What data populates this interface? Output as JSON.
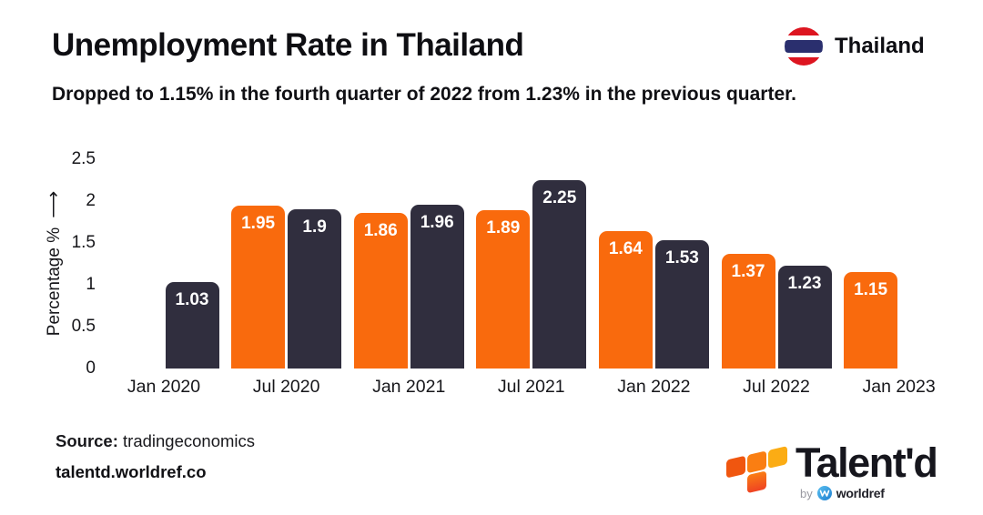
{
  "header": {
    "country_label": "Thailand",
    "flag_icon": "thailand-flag-icon"
  },
  "chart_data": {
    "type": "bar",
    "title": "Unemployment Rate in Thailand",
    "subtitle": "Dropped to 1.15% in the fourth quarter of 2022 from 1.23% in the previous quarter.",
    "ylabel": "Percentage %",
    "ylim": [
      0,
      2.5
    ],
    "yticks": [
      0,
      0.5,
      1,
      1.5,
      2,
      2.5
    ],
    "grid": false,
    "legend": false,
    "x_tick_labels": [
      "Jan 2020",
      "Jul 2020",
      "Jan 2021",
      "Jul 2021",
      "Jan 2022",
      "Jul 2022",
      "Jan 2023"
    ],
    "bar_colors": {
      "orange": "#F96A0D",
      "navy": "#302E3E"
    },
    "bars": [
      {
        "quarter": "Q1 2020",
        "value": 1.03,
        "label": "1.03",
        "color": "navy",
        "tick_index": 0,
        "side": "right"
      },
      {
        "quarter": "Q2 2020",
        "value": 1.95,
        "label": "1.95",
        "color": "orange",
        "tick_index": 1,
        "side": "left"
      },
      {
        "quarter": "Q3 2020",
        "value": 1.9,
        "label": "1.9",
        "color": "navy",
        "tick_index": 1,
        "side": "right"
      },
      {
        "quarter": "Q4 2020",
        "value": 1.86,
        "label": "1.86",
        "color": "orange",
        "tick_index": 2,
        "side": "left"
      },
      {
        "quarter": "Q1 2021",
        "value": 1.96,
        "label": "1.96",
        "color": "navy",
        "tick_index": 2,
        "side": "right"
      },
      {
        "quarter": "Q2 2021",
        "value": 1.89,
        "label": "1.89",
        "color": "orange",
        "tick_index": 3,
        "side": "left"
      },
      {
        "quarter": "Q3 2021",
        "value": 2.25,
        "label": "2.25",
        "color": "navy",
        "tick_index": 3,
        "side": "right"
      },
      {
        "quarter": "Q4 2021",
        "value": 1.64,
        "label": "1.64",
        "color": "orange",
        "tick_index": 4,
        "side": "left"
      },
      {
        "quarter": "Q1 2022",
        "value": 1.53,
        "label": "1.53",
        "color": "navy",
        "tick_index": 4,
        "side": "right"
      },
      {
        "quarter": "Q2 2022",
        "value": 1.37,
        "label": "1.37",
        "color": "orange",
        "tick_index": 5,
        "side": "left"
      },
      {
        "quarter": "Q3 2022",
        "value": 1.23,
        "label": "1.23",
        "color": "navy",
        "tick_index": 5,
        "side": "right"
      },
      {
        "quarter": "Q4 2022",
        "value": 1.15,
        "label": "1.15",
        "color": "orange",
        "tick_index": 6,
        "side": "left"
      }
    ]
  },
  "icons": {
    "y_axis_up_arrow": "⟶"
  },
  "colors": {
    "bar_orange": "#F96A0D",
    "bar_navy": "#302E3E",
    "flag_red": "#DD1520",
    "flag_blue": "#2A2F6E"
  },
  "footer": {
    "source_label": "Source:",
    "source_value": "tradingeconomics",
    "website": "talentd.worldref.co",
    "brand": {
      "name": "Talent'd",
      "by": "by",
      "company": "worldref"
    }
  }
}
